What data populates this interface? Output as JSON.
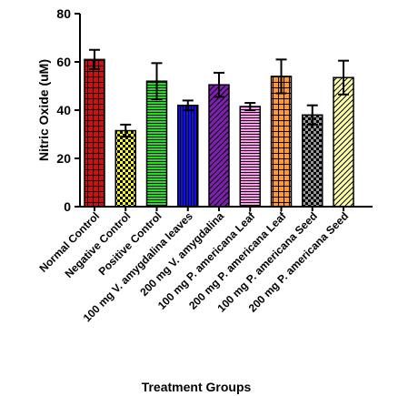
{
  "chart_data": {
    "type": "bar",
    "title": "",
    "xlabel": "Treatment Groups",
    "ylabel": "Nitric Oxide (uM)",
    "ylim": [
      0,
      80
    ],
    "yticks": [
      0,
      20,
      40,
      60,
      80
    ],
    "grid": false,
    "categories": [
      "Normal Control",
      "Negative Control",
      "Positive Control",
      "100 mg V. amygdalina leaves",
      "200 mg V. amygdalina",
      "100 mg P. americana Leaf",
      "200 mg P. americana Leaf",
      "100 mg P. americana Seed",
      "200 mg P. americana Seed"
    ],
    "values": [
      61,
      31.5,
      52,
      42,
      50.5,
      41.5,
      54,
      38,
      53.5
    ],
    "errors": [
      4,
      2.5,
      7.5,
      2,
      5,
      1.5,
      7,
      4,
      7
    ],
    "bar_colors": [
      "#d01010",
      "#ffff00",
      "#22dd22",
      "#1010ee",
      "#8020b0",
      "#ff99ee",
      "#ff9933",
      "#999999",
      "#ffffaa"
    ],
    "bar_patterns": [
      "grid",
      "checker",
      "hstripes",
      "vstripes",
      "diagonal",
      "hstripes",
      "grid",
      "checker",
      "diagonal"
    ]
  }
}
